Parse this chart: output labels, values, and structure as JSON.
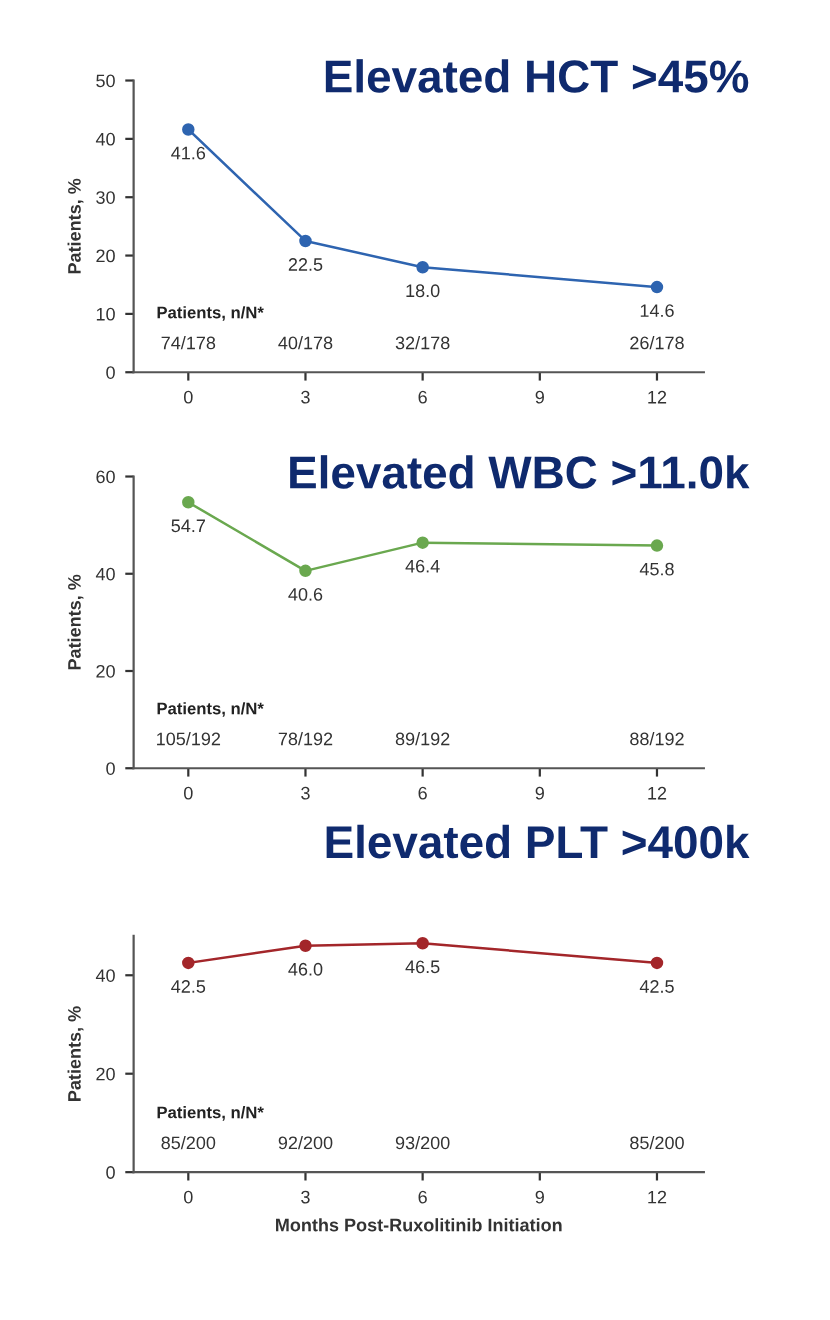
{
  "chart_data": [
    {
      "type": "line",
      "title": "Elevated HCT >45%",
      "ylabel": "Patients, %",
      "x": [
        0,
        3,
        6,
        12
      ],
      "series": [
        {
          "color": "#2e64b0",
          "values": [
            41.6,
            22.5,
            18.0,
            14.6
          ],
          "value_labels": [
            "41.6",
            "22.5",
            "18.0",
            "14.6"
          ]
        }
      ],
      "marker": "circle",
      "xlim": [
        -1.4,
        13.2
      ],
      "xticks": [
        0,
        3,
        6,
        9,
        12
      ],
      "ylim": [
        0,
        50
      ],
      "yticks": [
        0,
        10,
        20,
        30,
        40,
        50
      ],
      "annotations": [
        "Patients, n/N*",
        "74/178",
        "40/178",
        "32/178",
        "26/178"
      ]
    },
    {
      "type": "line",
      "title": "Elevated WBC >11.0k",
      "ylabel": "Patients, %",
      "x": [
        0,
        3,
        6,
        12
      ],
      "series": [
        {
          "color": "#6aa84f",
          "values": [
            54.7,
            40.6,
            46.4,
            45.8
          ],
          "value_labels": [
            "54.7",
            "40.6",
            "46.4",
            "45.8"
          ]
        }
      ],
      "marker": "circle",
      "xlim": [
        -1.4,
        13.2
      ],
      "xticks": [
        0,
        3,
        6,
        9,
        12
      ],
      "ylim": [
        0,
        60
      ],
      "yticks": [
        0,
        20,
        40,
        60
      ],
      "annotations": [
        "Patients, n/N*",
        "105/192",
        "78/192",
        "89/192",
        "88/192"
      ]
    },
    {
      "type": "line",
      "title": "Elevated PLT >400k",
      "ylabel": "Patients, %",
      "xlabel": "Months Post-Ruxolitinib Initiation",
      "x": [
        0,
        3,
        6,
        12
      ],
      "series": [
        {
          "color": "#a3262a",
          "values": [
            42.5,
            46.0,
            46.5,
            42.5
          ],
          "value_labels": [
            "42.5",
            "46.0",
            "46.5",
            "42.5"
          ]
        }
      ],
      "marker": "circle",
      "xlim": [
        -1.4,
        13.2
      ],
      "xticks": [
        0,
        3,
        6,
        9,
        12
      ],
      "ylim": [
        0,
        48
      ],
      "yticks": [
        0,
        20,
        40
      ],
      "annotations": [
        "Patients, n/N*",
        "85/200",
        "92/200",
        "93/200",
        "85/200"
      ]
    }
  ]
}
